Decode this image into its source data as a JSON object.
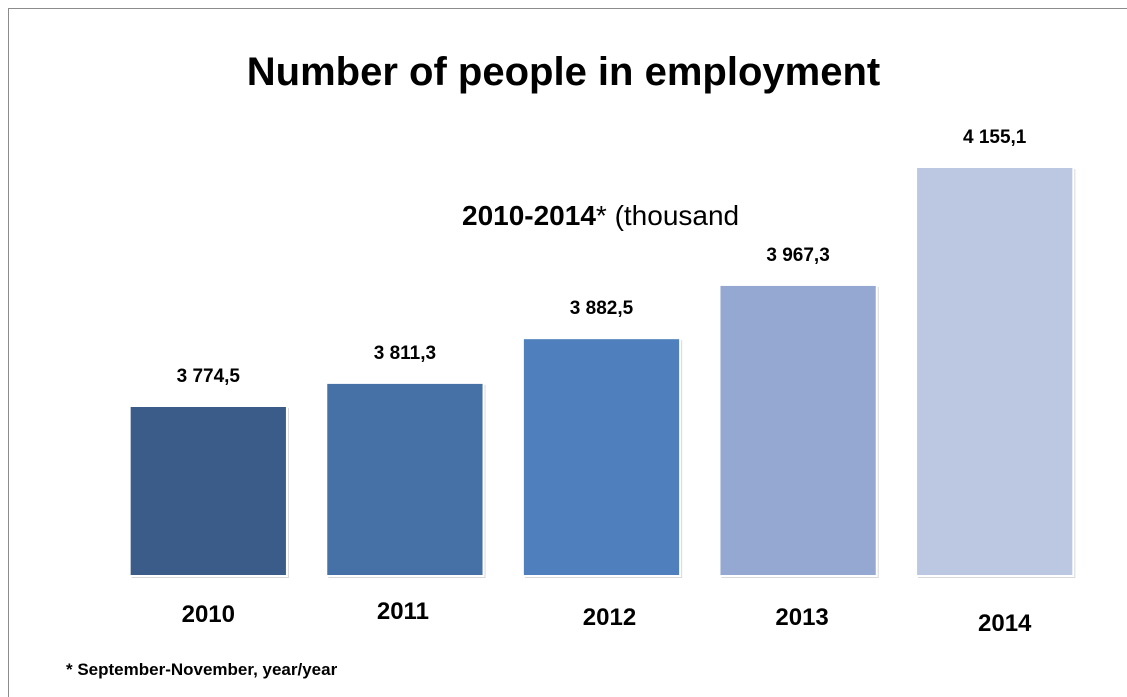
{
  "chart_data": {
    "type": "bar",
    "title": "Number of people in employment",
    "subtitle_bold": "2010-2014",
    "subtitle_rest": "* (thousand",
    "footnote": "* September-November, year/year",
    "categories": [
      "2010",
      "2011",
      "2012",
      "2013",
      "2014"
    ],
    "values": [
      3774.5,
      3811.3,
      3882.5,
      3967.3,
      4155.1
    ],
    "value_labels": [
      "3 774,5",
      "3 811,3",
      "3 882,5",
      "3 967,3",
      "4 155,1"
    ],
    "colors": [
      "#3b5c89",
      "#4671a6",
      "#4f80bd",
      "#95a8d2",
      "#bcc8e2"
    ],
    "xlabel": "",
    "ylabel": "",
    "grid": false,
    "legend": "none"
  }
}
